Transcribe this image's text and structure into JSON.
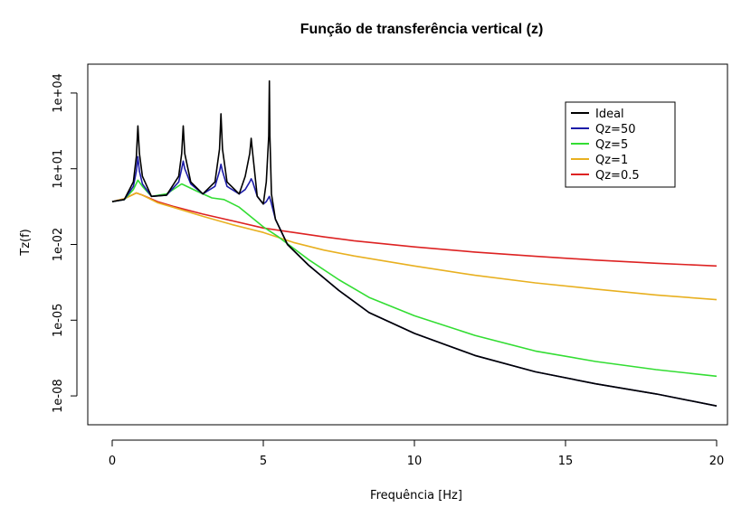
{
  "chart_data": {
    "type": "line",
    "title": "Função de transferência vertical (z)",
    "xlabel": "Frequência [Hz]",
    "ylabel": "Tz(f)",
    "y_scale": "log10",
    "xlim": [
      0,
      20
    ],
    "ylim": [
      1e-09,
      100000
    ],
    "x_ticks": [
      {
        "value": 0,
        "label": "0"
      },
      {
        "value": 5,
        "label": "5"
      },
      {
        "value": 10,
        "label": "10"
      },
      {
        "value": 15,
        "label": "15"
      },
      {
        "value": 20,
        "label": "20"
      }
    ],
    "y_ticks": [
      {
        "value": 1e-08,
        "label": "1e-08"
      },
      {
        "value": 1e-05,
        "label": "1e-05"
      },
      {
        "value": 0.01,
        "label": "1e-02"
      },
      {
        "value": 10,
        "label": "1e+01"
      },
      {
        "value": 10000,
        "label": "1e+04"
      }
    ],
    "grid": false,
    "legend_position": "top-right",
    "series": [
      {
        "name": "Ideal",
        "color": "#000000",
        "points": [
          [
            0,
            0.5
          ],
          [
            0.4,
            0.6
          ],
          [
            0.7,
            3
          ],
          [
            0.8,
            30
          ],
          [
            0.85,
            500
          ],
          [
            0.9,
            40
          ],
          [
            1.0,
            5
          ],
          [
            1.3,
            0.8
          ],
          [
            1.8,
            0.9
          ],
          [
            2.2,
            5
          ],
          [
            2.3,
            40
          ],
          [
            2.35,
            500
          ],
          [
            2.4,
            40
          ],
          [
            2.6,
            3
          ],
          [
            3.0,
            1
          ],
          [
            3.4,
            3
          ],
          [
            3.55,
            60
          ],
          [
            3.6,
            1500
          ],
          [
            3.65,
            60
          ],
          [
            3.8,
            3
          ],
          [
            4.2,
            1
          ],
          [
            4.4,
            5
          ],
          [
            4.55,
            40
          ],
          [
            4.6,
            160
          ],
          [
            4.65,
            40
          ],
          [
            4.8,
            0.8
          ],
          [
            5.0,
            0.4
          ],
          [
            5.1,
            3
          ],
          [
            5.18,
            200
          ],
          [
            5.2,
            30000
          ],
          [
            5.22,
            200
          ],
          [
            5.27,
            1
          ],
          [
            5.4,
            0.1
          ],
          [
            5.8,
            0.01
          ],
          [
            6.5,
            0.0015
          ],
          [
            7.5,
            0.00015
          ],
          [
            8.5,
            2e-05
          ],
          [
            10,
            3e-06
          ],
          [
            12,
            4e-07
          ],
          [
            14,
            9e-08
          ],
          [
            16,
            3e-08
          ],
          [
            18,
            1.2e-08
          ],
          [
            20,
            4e-09
          ]
        ]
      },
      {
        "name": "Qz=50",
        "color": "#1c1ca8",
        "points": [
          [
            0,
            0.5
          ],
          [
            0.4,
            0.6
          ],
          [
            0.7,
            2
          ],
          [
            0.8,
            8
          ],
          [
            0.85,
            30
          ],
          [
            0.9,
            8
          ],
          [
            1.0,
            2.5
          ],
          [
            1.3,
            0.8
          ],
          [
            1.8,
            0.9
          ],
          [
            2.2,
            3
          ],
          [
            2.3,
            10
          ],
          [
            2.35,
            20
          ],
          [
            2.4,
            10
          ],
          [
            2.6,
            2.5
          ],
          [
            3.0,
            1
          ],
          [
            3.4,
            2
          ],
          [
            3.55,
            8
          ],
          [
            3.6,
            15
          ],
          [
            3.65,
            8
          ],
          [
            3.8,
            2
          ],
          [
            4.2,
            1
          ],
          [
            4.4,
            1.5
          ],
          [
            4.55,
            3
          ],
          [
            4.6,
            4
          ],
          [
            4.65,
            3
          ],
          [
            4.8,
            0.8
          ],
          [
            5.0,
            0.4
          ],
          [
            5.1,
            0.5
          ],
          [
            5.2,
            0.8
          ],
          [
            5.25,
            0.5
          ],
          [
            5.4,
            0.1
          ],
          [
            5.8,
            0.01
          ],
          [
            6.5,
            0.0015
          ],
          [
            7.5,
            0.00015
          ],
          [
            8.5,
            2e-05
          ],
          [
            10,
            3e-06
          ],
          [
            12,
            4e-07
          ],
          [
            14,
            9e-08
          ],
          [
            16,
            3e-08
          ],
          [
            18,
            1.2e-08
          ],
          [
            20,
            4e-09
          ]
        ]
      },
      {
        "name": "Qz=5",
        "color": "#33dd33",
        "points": [
          [
            0,
            0.5
          ],
          [
            0.4,
            0.6
          ],
          [
            0.7,
            1.5
          ],
          [
            0.85,
            3.5
          ],
          [
            1.0,
            2
          ],
          [
            1.3,
            0.8
          ],
          [
            1.8,
            1
          ],
          [
            2.3,
            2.5
          ],
          [
            2.8,
            1.3
          ],
          [
            3.3,
            0.7
          ],
          [
            3.7,
            0.6
          ],
          [
            4.2,
            0.3
          ],
          [
            5.0,
            0.05
          ],
          [
            5.5,
            0.02
          ],
          [
            6.0,
            0.007
          ],
          [
            6.5,
            0.0025
          ],
          [
            7.5,
            0.0004
          ],
          [
            8.5,
            8e-05
          ],
          [
            10,
            1.5e-05
          ],
          [
            12,
            2.5e-06
          ],
          [
            14,
            6e-07
          ],
          [
            16,
            2.3e-07
          ],
          [
            18,
            1.1e-07
          ],
          [
            20,
            6e-08
          ]
        ]
      },
      {
        "name": "Qz=1",
        "color": "#e8b020",
        "points": [
          [
            0,
            0.5
          ],
          [
            0.4,
            0.65
          ],
          [
            0.8,
            1.1
          ],
          [
            1.0,
            0.9
          ],
          [
            1.5,
            0.45
          ],
          [
            2.0,
            0.3
          ],
          [
            3.0,
            0.13
          ],
          [
            4.0,
            0.06
          ],
          [
            5.0,
            0.03
          ],
          [
            6.0,
            0.012
          ],
          [
            7.0,
            0.006
          ],
          [
            8.0,
            0.0035
          ],
          [
            10,
            0.0014
          ],
          [
            12,
            0.0006
          ],
          [
            14,
            0.0003
          ],
          [
            16,
            0.00017
          ],
          [
            18,
            0.0001
          ],
          [
            20,
            6.5e-05
          ]
        ]
      },
      {
        "name": "Qz=0.5",
        "color": "#dd2222",
        "points": [
          [
            0,
            0.5
          ],
          [
            0.4,
            0.65
          ],
          [
            0.8,
            1.1
          ],
          [
            1.0,
            0.9
          ],
          [
            1.5,
            0.5
          ],
          [
            2.0,
            0.33
          ],
          [
            3.0,
            0.16
          ],
          [
            4.0,
            0.085
          ],
          [
            5.0,
            0.045
          ],
          [
            6.0,
            0.03
          ],
          [
            7.0,
            0.02
          ],
          [
            8.0,
            0.014
          ],
          [
            10,
            0.008
          ],
          [
            12,
            0.005
          ],
          [
            14,
            0.0034
          ],
          [
            16,
            0.0024
          ],
          [
            18,
            0.0018
          ],
          [
            20,
            0.0014
          ]
        ]
      }
    ]
  }
}
